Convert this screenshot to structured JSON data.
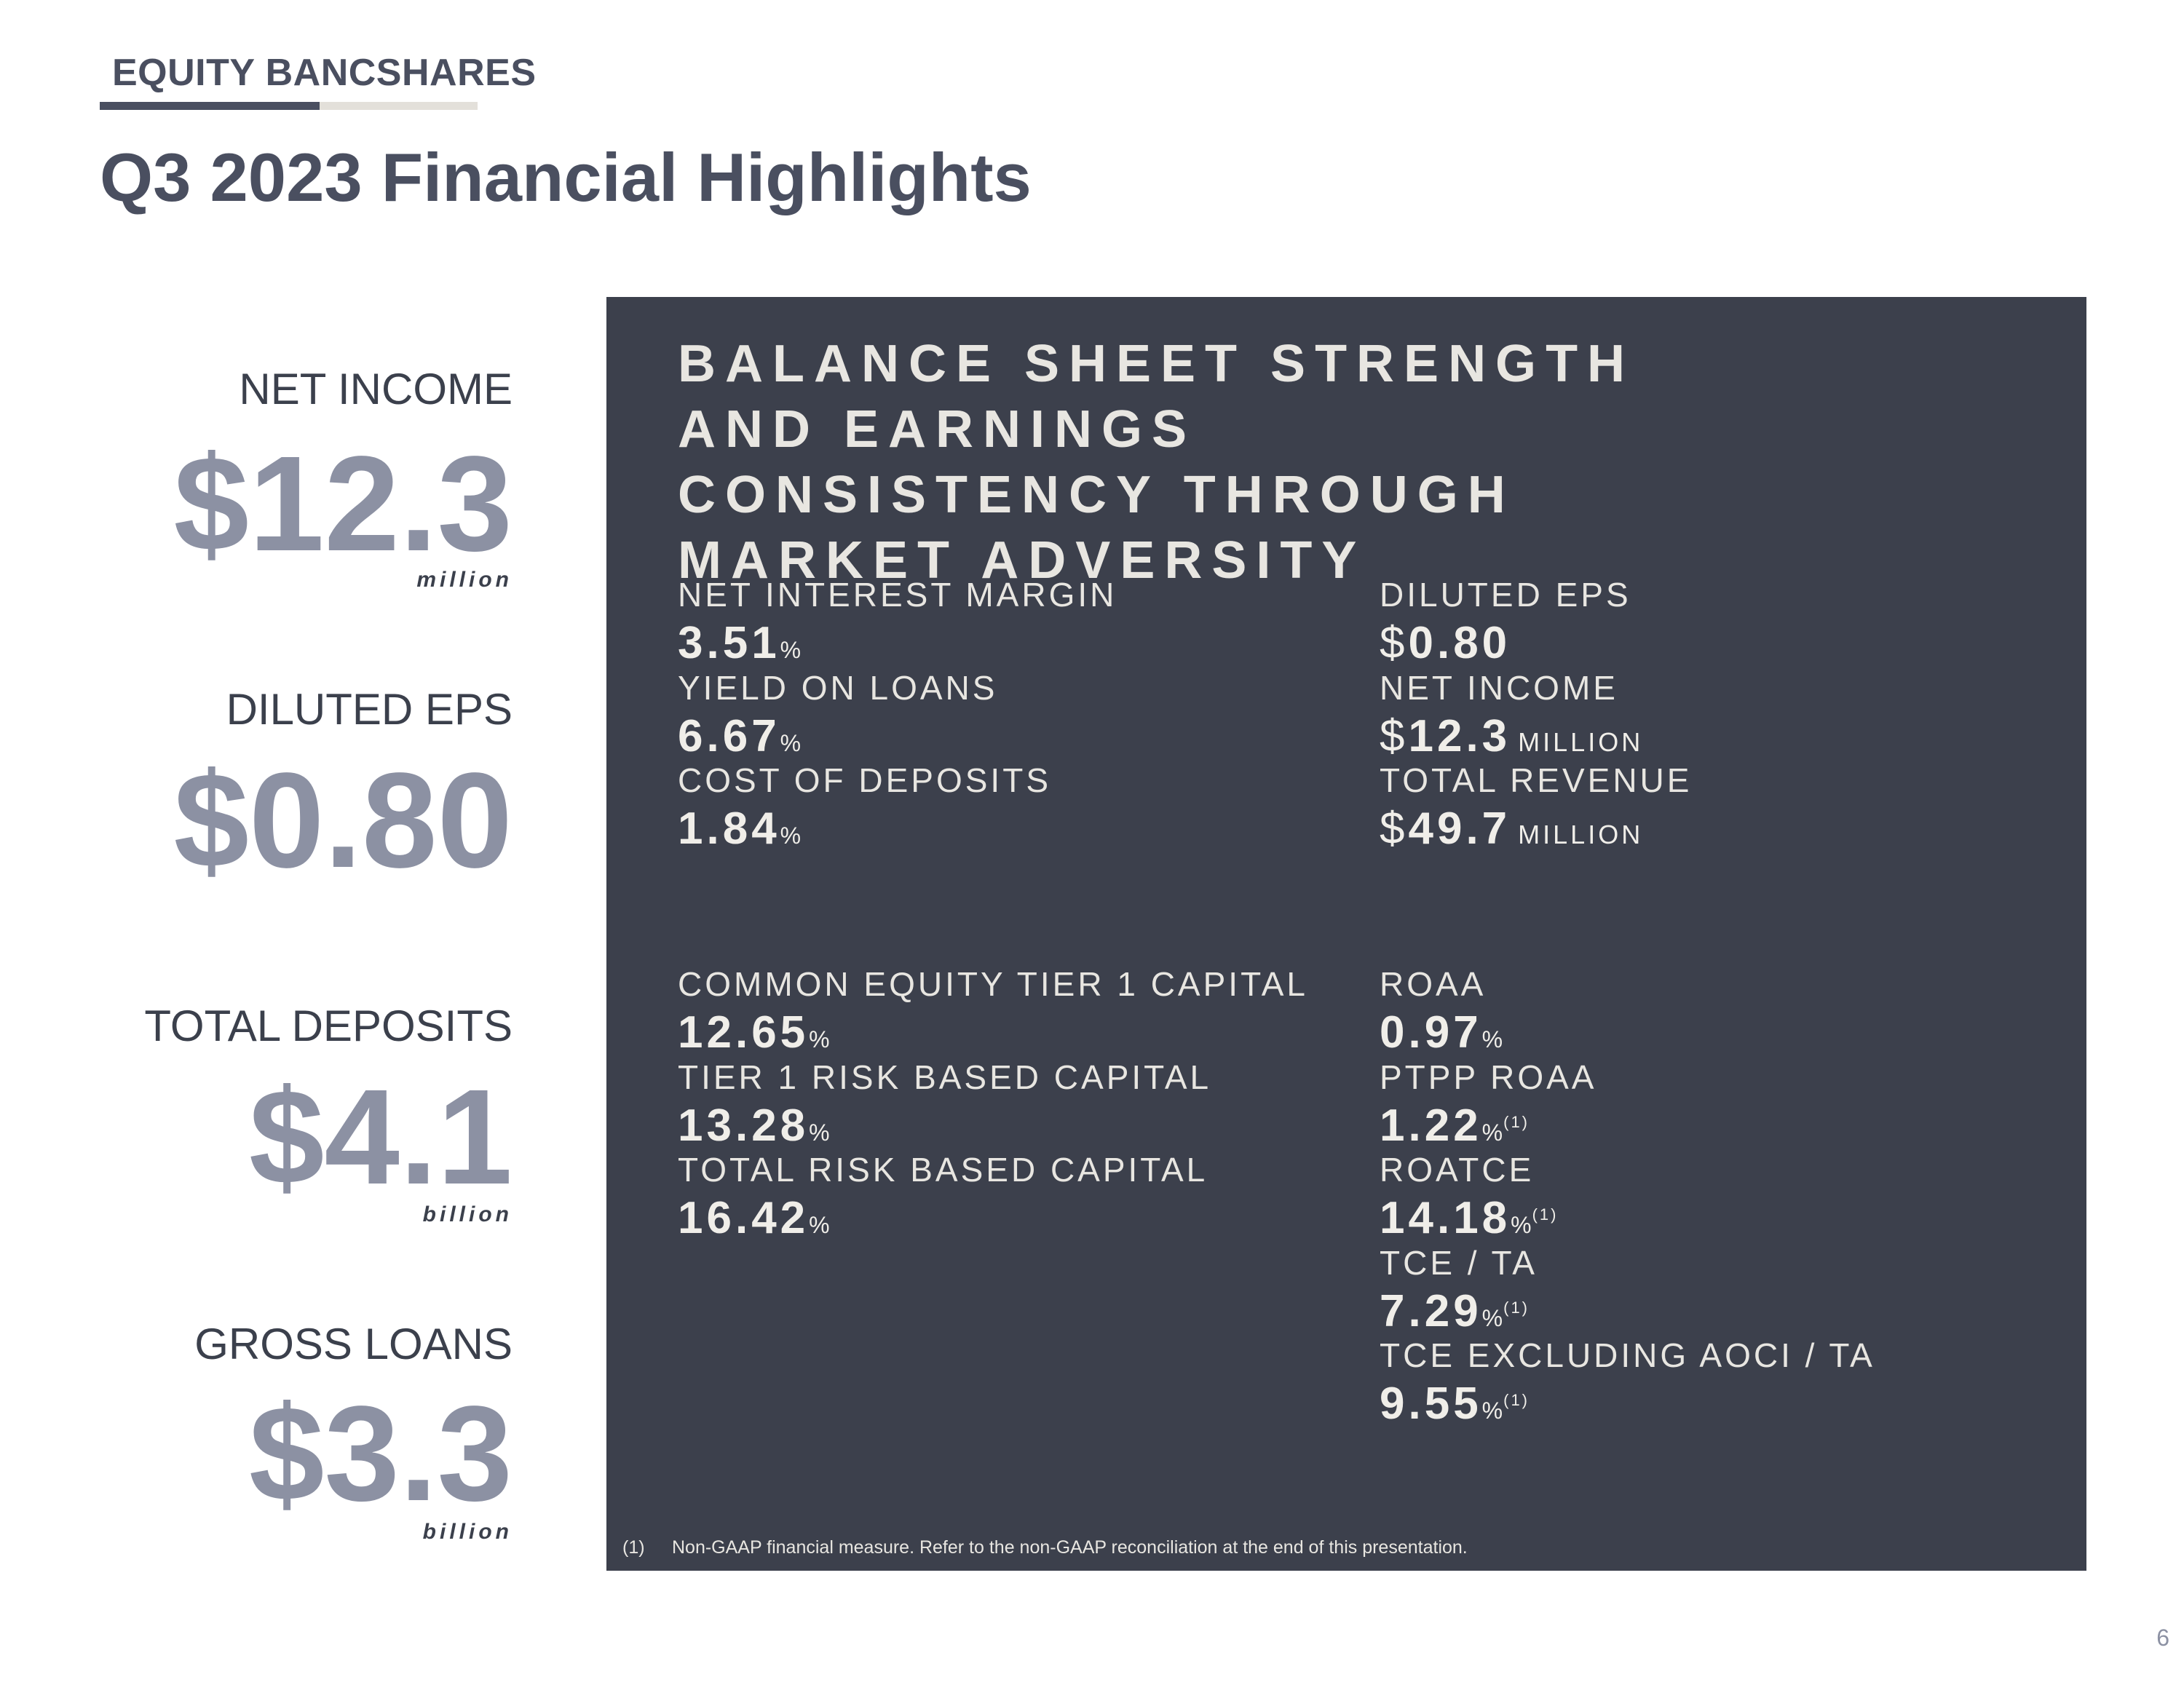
{
  "header": {
    "brand": "EQUITY BANCSHARES",
    "title": "Q3 2023 Financial Highlights"
  },
  "kpis": [
    {
      "label": "NET INCOME",
      "value": "$12.3",
      "unit": "million"
    },
    {
      "label": "DILUTED EPS",
      "value": "$0.80",
      "unit": ""
    },
    {
      "label": "TOTAL DEPOSITS",
      "value": "$4.1",
      "unit": "billion"
    },
    {
      "label": "GROSS LOANS",
      "value": "$3.3",
      "unit": "billion"
    }
  ],
  "panel": {
    "heading_lines": [
      "BALANCE SHEET STRENGTH",
      "AND EARNINGS",
      "CONSISTENCY THROUGH",
      "MARKET ADVERSITY"
    ],
    "metrics": {
      "nim": {
        "label": "NET INTEREST MARGIN",
        "value": "3.51",
        "pct": "%"
      },
      "yol": {
        "label": "YIELD ON LOANS",
        "value": "6.67",
        "pct": "%"
      },
      "cod": {
        "label": "COST OF DEPOSITS",
        "value": "1.84",
        "pct": "%"
      },
      "eps": {
        "label": "DILUTED EPS",
        "currency": "$",
        "value": "0.80"
      },
      "ni": {
        "label": "NET INCOME",
        "currency": "$",
        "value": "12.3",
        "unit": "MILLION"
      },
      "rev": {
        "label": "TOTAL REVENUE",
        "currency": "$",
        "value": "49.7",
        "unit": "MILLION"
      },
      "cet1": {
        "label": "COMMON EQUITY TIER 1 CAPITAL",
        "value": "12.65",
        "pct": "%"
      },
      "t1": {
        "label": "TIER 1 RISK BASED CAPITAL",
        "value": "13.28",
        "pct": "%"
      },
      "trb": {
        "label": "TOTAL RISK BASED CAPITAL",
        "value": "16.42",
        "pct": "%"
      },
      "roaa": {
        "label": "ROAA",
        "value": "0.97",
        "pct": "%"
      },
      "ptpp": {
        "label": "PTPP ROAA",
        "value": "1.22",
        "pct": "%",
        "fn": "(1)"
      },
      "roatce": {
        "label": "ROATCE",
        "value": "14.18",
        "pct": "%",
        "fn": "(1)"
      },
      "tce": {
        "label": "TCE / TA",
        "value": "7.29",
        "pct": "%",
        "fn": "(1)"
      },
      "tcex": {
        "label": "TCE EXCLUDING AOCI / TA",
        "value": "9.55",
        "pct": "%",
        "fn": "(1)"
      }
    },
    "footnote": {
      "number": "(1)",
      "text": "Non-GAAP financial measure. Refer to the non-GAAP reconciliation at the end of this presentation."
    }
  },
  "page_number": "6"
}
